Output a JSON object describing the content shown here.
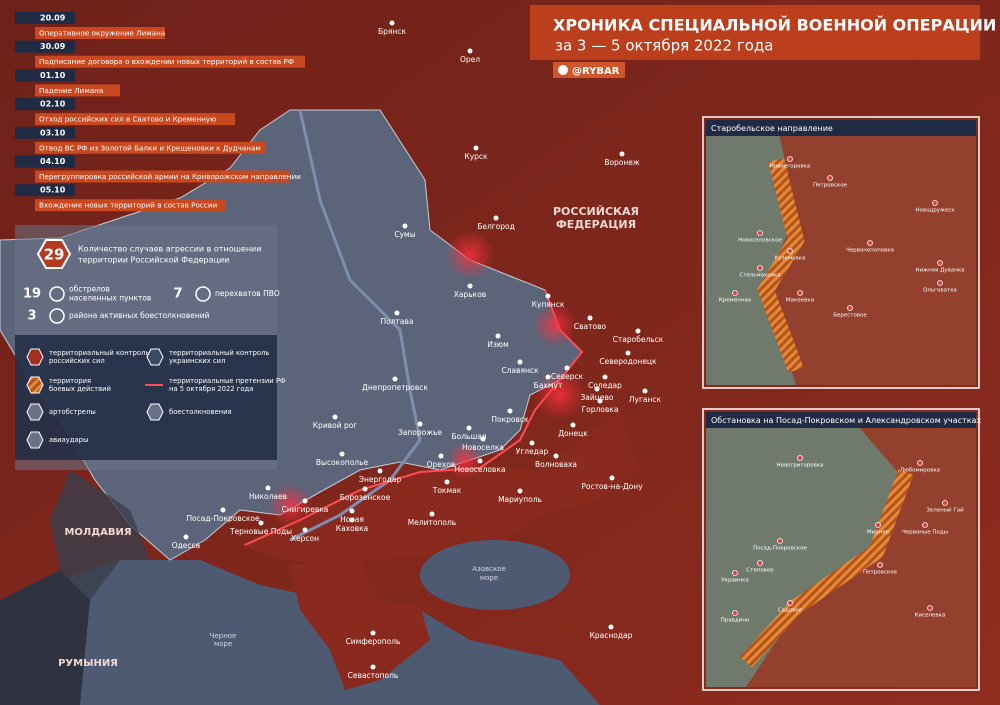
{
  "header": {
    "title": "ХРОНИКА СПЕЦИАЛЬНОЙ ВОЕННОЙ ОПЕРАЦИИ",
    "subtitle": "за 3 — 5 октября 2022 года",
    "channel": "@RYBAR"
  },
  "timeline": [
    {
      "date": "20.09",
      "text": "Оперативное окружение Лимана"
    },
    {
      "date": "30.09",
      "text": "Подписание договора о вхождении новых территорий в состав РФ"
    },
    {
      "date": "01.10",
      "text": "Падение Лимана"
    },
    {
      "date": "02.10",
      "text": "Отход российских сил в Сватово и Кременную"
    },
    {
      "date": "03.10",
      "text": "Отвод ВС РФ из Золотой Балки и Крещеновки к Дудчанам"
    },
    {
      "date": "04.10",
      "text": "Перегруппировка российской армии на Криворожском направлении"
    },
    {
      "date": "05.10",
      "text": "Вхождение новых территорий в состав России"
    }
  ],
  "stats": {
    "total": {
      "value": "29",
      "lines": [
        "Количество случаев агрессии в отношении",
        "территории Российской Федерации"
      ]
    },
    "items": [
      {
        "value": "19",
        "lines": [
          "обстрелов",
          "населенных пунктов"
        ]
      },
      {
        "value": "7",
        "lines": [
          "перехватов ПВО"
        ]
      },
      {
        "value": "3",
        "lines": [
          "района активных боестолкновений"
        ]
      }
    ]
  },
  "legend": [
    {
      "lines": [
        "территориальный контроль",
        "российских сил"
      ]
    },
    {
      "lines": [
        "территориальный контроль",
        "украинских сил"
      ]
    },
    {
      "lines": [
        "территория",
        "боевых действий"
      ]
    },
    {
      "lines": [
        "территориальные претензии РФ",
        "на 5 октября 2022 года"
      ]
    },
    {
      "lines": [
        "артобстрелы"
      ]
    },
    {
      "lines": [
        "боестолкновения"
      ]
    },
    {
      "lines": [
        "авиаудары"
      ]
    }
  ],
  "regions": [
    "РОССИЙСКАЯ",
    "ФЕДЕРАЦИЯ",
    "МОЛДАВИЯ",
    "РУМЫНИЯ",
    "Азовское",
    "море",
    "Черное",
    "море"
  ],
  "cities": [
    "Брянск",
    "Орел",
    "Курск",
    "Воронеж",
    "Белгород",
    "Сумы",
    "Харьков",
    "Купянск",
    "Полтава",
    "Сватово",
    "Старобельск",
    "Изюм",
    "Северодонецк",
    "Славянск",
    "Северск",
    "Бахмут",
    "Соледар",
    "Днепропетровск",
    "Зайцево",
    "Горловка",
    "Луганск",
    "Кривой рог",
    "Запорожье",
    "Покровск",
    "Донецк",
    "Большая",
    "Новоселка",
    "Угледар",
    "Высокополье",
    "Орехов",
    "Новоселовка",
    "Волноваха",
    "Энергодар",
    "Ростов-на-Дону",
    "Токмак",
    "Николаев",
    "Борозенское",
    "Мариуполь",
    "Снигиревка",
    "Посад-Покровское",
    "Новая",
    "Каховка",
    "Мелитополь",
    "Терновые Поды",
    "Херсон",
    "Одесса",
    "Симферополь",
    "Краснодар",
    "Севастополь"
  ],
  "insets": [
    {
      "title": "Старобельское направление",
      "labels": [
        "Новоегоровка",
        "Петровское",
        "Новоселовское",
        "Куземовка",
        "Стельмаховка",
        "Макеевка",
        "Кременная",
        "Червонопоповка",
        "Новодружеск",
        "Берестовое",
        "Ольговатка",
        "Нижняя Дуванка"
      ]
    },
    {
      "title": "Обстановка на Посад-Покровском и Александровском участках",
      "labels": [
        "Новогригоровка",
        "Любомировка",
        "Зеленый Гай",
        "Червоные Поды",
        "Мирное",
        "Петровское",
        "Посад-Покровское",
        "Степовое",
        "Садовое",
        "Правдино",
        "Киселевка",
        "Украинка"
      ]
    }
  ]
}
